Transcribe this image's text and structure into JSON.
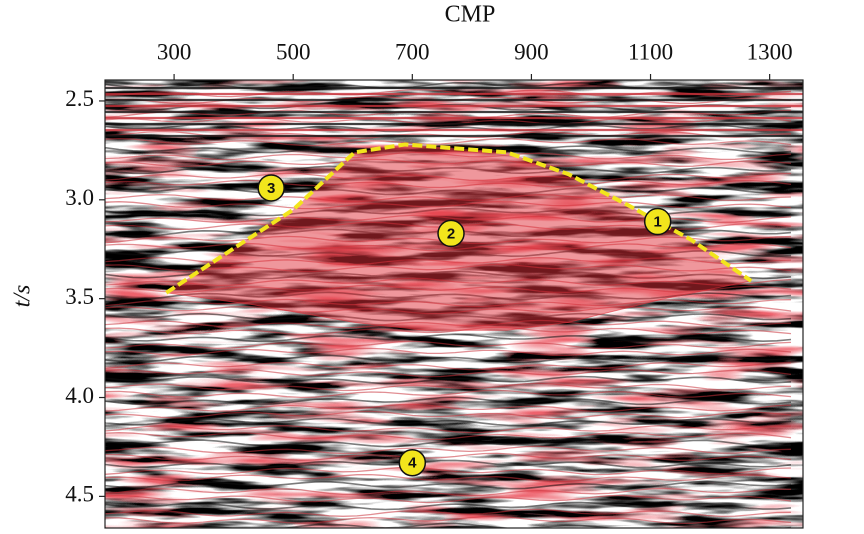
{
  "chart_data": {
    "type": "seismic-section",
    "x_label": "CMP",
    "y_label": "t/s",
    "xlim": [
      184,
      1356
    ],
    "ylim": [
      4.66,
      2.394
    ],
    "xticks": [
      300,
      500,
      700,
      900,
      1100,
      1300
    ],
    "yticks": [
      2.5,
      {
        "value": 3,
        "label": "3.0"
      },
      3.5,
      {
        "value": 4,
        "label": "4.0"
      },
      4.5
    ],
    "boundary": {
      "color": "#f2e51c",
      "cmp": [
        287,
        398,
        500,
        603,
        688,
        859,
        962,
        1064,
        1167,
        1269
      ],
      "t": [
        3.47,
        3.25,
        3.05,
        2.76,
        2.72,
        2.76,
        2.87,
        3.03,
        3.2,
        3.41
      ]
    },
    "base": {
      "cmp": [
        1269,
        1116,
        962,
        859,
        722,
        603,
        432,
        287
      ],
      "t": [
        3.41,
        3.505,
        3.62,
        3.66,
        3.66,
        3.62,
        3.53,
        3.47
      ]
    },
    "fill_color": "#e0303a",
    "annotations": [
      {
        "label": "1",
        "cmp": 1112,
        "t": 3.11
      },
      {
        "label": "2",
        "cmp": 765,
        "t": 3.17
      },
      {
        "label": "3",
        "cmp": 463,
        "t": 2.94
      },
      {
        "label": "4",
        "cmp": 700,
        "t": 4.33
      }
    ]
  }
}
